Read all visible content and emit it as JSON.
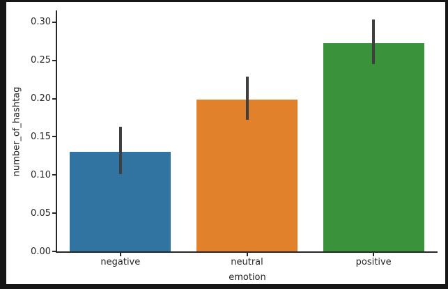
{
  "frame": {
    "background_color": "#161616",
    "figure_background": "#ffffff"
  },
  "chart_data": {
    "type": "bar",
    "title": "",
    "xlabel": "emotion",
    "ylabel": "number_of_hashtag",
    "categories": [
      "negative",
      "neutral",
      "positive"
    ],
    "values": [
      0.13,
      0.199,
      0.273
    ],
    "error_bars": {
      "low": [
        0.101,
        0.172,
        0.245
      ],
      "high": [
        0.163,
        0.229,
        0.304
      ]
    },
    "bar_colors": [
      "#3274a1",
      "#e1812c",
      "#3a923a"
    ],
    "error_color": "#3f3f3f",
    "yticks": [
      0.0,
      0.05,
      0.1,
      0.15,
      0.2,
      0.25,
      0.3
    ],
    "ytick_decimals": 2,
    "ylim": [
      0,
      0.3155
    ],
    "bar_rel_width": 0.8,
    "grid": false,
    "legend": null,
    "axis_color": "#262626",
    "text_color": "#262626"
  }
}
